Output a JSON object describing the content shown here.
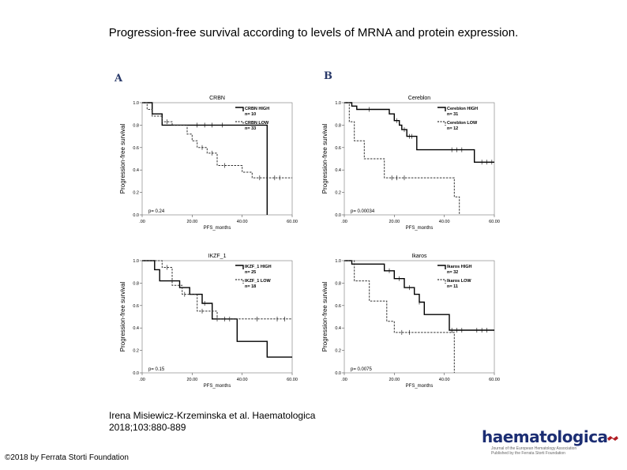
{
  "title": "Progression-free survival according to levels of MRNA and protein expression.",
  "panel_labels": [
    "A",
    "B"
  ],
  "credit": {
    "line1": "Irena Misiewicz-Krzeminska et al. Haematologica",
    "line2": "2018;103:880-889"
  },
  "copyright": "©2018 by Ferrata Storti Foundation",
  "logo": {
    "word": "haematologica",
    "sub1": "Journal of the European Hematology Association",
    "sub2": "Published by the Ferrata Storti Foundation"
  },
  "chart_data": [
    {
      "type": "line",
      "title": "CRBN",
      "xlabel": "PFS_months",
      "ylabel": "Progression-free survival",
      "xlim": [
        0,
        60
      ],
      "ylim": [
        0,
        1
      ],
      "xticks": [
        0,
        20,
        40,
        60
      ],
      "xticklabels": [
        ".00",
        "20.00",
        "40.00",
        "60.00"
      ],
      "yticks": [
        0,
        0.2,
        0.4,
        0.6,
        0.8,
        1.0
      ],
      "yticklabels": [
        "0.0",
        "0.2",
        "0.4",
        "0.6",
        "0.8",
        "1.0"
      ],
      "pvalue": "p= 0.24",
      "legend_position": "top-right",
      "series": [
        {
          "name": "CRBN HIGH",
          "n": "n= 10",
          "style": "solid",
          "x": [
            0,
            4,
            4,
            8,
            8,
            50,
            50
          ],
          "y": [
            1.0,
            1.0,
            0.9,
            0.9,
            0.8,
            0.8,
            0.0
          ],
          "censor_x": [
            22,
            25,
            28,
            32
          ]
        },
        {
          "name": "CRBN LOW",
          "n": "n= 33",
          "style": "dashed",
          "x": [
            0,
            2,
            2,
            4,
            4,
            8,
            8,
            12,
            12,
            18,
            18,
            20,
            20,
            22,
            22,
            26,
            26,
            30,
            30,
            40,
            40,
            44,
            44,
            60
          ],
          "y": [
            1.0,
            1.0,
            0.94,
            0.94,
            0.88,
            0.88,
            0.83,
            0.83,
            0.8,
            0.8,
            0.72,
            0.72,
            0.66,
            0.66,
            0.6,
            0.6,
            0.55,
            0.55,
            0.44,
            0.44,
            0.38,
            0.38,
            0.33,
            0.33
          ],
          "censor_x": [
            10,
            24,
            28,
            33,
            47,
            50,
            53,
            55
          ]
        }
      ]
    },
    {
      "type": "line",
      "title": "Cereblon",
      "xlabel": "PFS_months",
      "ylabel": "Progression-free survival",
      "xlim": [
        0,
        60
      ],
      "ylim": [
        0,
        1
      ],
      "xticks": [
        0,
        20,
        40,
        60
      ],
      "xticklabels": [
        ".00",
        "20.00",
        "40.00",
        "60.00"
      ],
      "yticks": [
        0,
        0.2,
        0.4,
        0.6,
        0.8,
        1.0
      ],
      "yticklabels": [
        "0.0",
        "0.2",
        "0.4",
        "0.6",
        "0.8",
        "1.0"
      ],
      "pvalue": "p= 0.00034",
      "legend_position": "top-right",
      "series": [
        {
          "name": "Cereblon HIGH",
          "n": "n= 31",
          "style": "solid",
          "x": [
            0,
            3,
            3,
            5,
            5,
            18,
            18,
            20,
            20,
            22,
            22,
            23,
            23,
            25,
            25,
            29,
            29,
            52,
            52,
            60
          ],
          "y": [
            1.0,
            1.0,
            0.97,
            0.97,
            0.94,
            0.94,
            0.9,
            0.9,
            0.84,
            0.84,
            0.8,
            0.8,
            0.76,
            0.76,
            0.7,
            0.7,
            0.58,
            0.58,
            0.47,
            0.47
          ],
          "censor_x": [
            10,
            21,
            24,
            26,
            27,
            43,
            45,
            47,
            55,
            57,
            59
          ]
        },
        {
          "name": "Cereblon LOW",
          "n": "n= 12",
          "style": "dashed",
          "x": [
            0,
            2,
            2,
            4,
            4,
            8,
            8,
            16,
            16,
            44,
            44,
            46,
            46
          ],
          "y": [
            1.0,
            1.0,
            0.83,
            0.83,
            0.66,
            0.66,
            0.5,
            0.5,
            0.33,
            0.33,
            0.16,
            0.16,
            0.0
          ],
          "censor_x": [
            19,
            21,
            24
          ]
        }
      ]
    },
    {
      "type": "line",
      "title": "IKZF_1",
      "xlabel": "PFS_months",
      "ylabel": "Progression-free survival",
      "xlim": [
        0,
        60
      ],
      "ylim": [
        0,
        1
      ],
      "xticks": [
        0,
        20,
        40,
        60
      ],
      "xticklabels": [
        ".00",
        "20.00",
        "40.00",
        "60.00"
      ],
      "yticks": [
        0,
        0.2,
        0.4,
        0.6,
        0.8,
        1.0
      ],
      "yticklabels": [
        "0.0",
        "0.2",
        "0.4",
        "0.6",
        "0.8",
        "1.0"
      ],
      "pvalue": "p= 0.15",
      "legend_position": "top-right",
      "series": [
        {
          "name": "IKZF_1 HIGH",
          "n": "n= 25",
          "style": "solid",
          "x": [
            0,
            5,
            5,
            7,
            7,
            15,
            15,
            19,
            19,
            24,
            24,
            28,
            28,
            38,
            38,
            50,
            50,
            60
          ],
          "y": [
            1.0,
            1.0,
            0.92,
            0.92,
            0.82,
            0.82,
            0.76,
            0.76,
            0.7,
            0.7,
            0.62,
            0.62,
            0.48,
            0.48,
            0.28,
            0.28,
            0.14,
            0.14
          ],
          "censor_x": [
            25,
            30,
            35
          ]
        },
        {
          "name": "IKZF_1 LOW",
          "n": "n= 18",
          "style": "dashed",
          "x": [
            0,
            8,
            8,
            12,
            12,
            16,
            16,
            22,
            22,
            30,
            30,
            44,
            44,
            60
          ],
          "y": [
            1.0,
            1.0,
            0.94,
            0.94,
            0.78,
            0.78,
            0.7,
            0.7,
            0.55,
            0.55,
            0.48,
            0.48,
            0.48,
            0.48
          ],
          "censor_x": [
            10,
            17,
            24,
            33,
            46,
            54,
            57
          ]
        }
      ]
    },
    {
      "type": "line",
      "title": "Ikaros",
      "xlabel": "PFS_months",
      "ylabel": "Progression-free survival",
      "xlim": [
        0,
        60
      ],
      "ylim": [
        0,
        1
      ],
      "xticks": [
        0,
        20,
        40,
        60
      ],
      "xticklabels": [
        ".00",
        "20.00",
        "40.00",
        "60.00"
      ],
      "yticks": [
        0,
        0.2,
        0.4,
        0.6,
        0.8,
        1.0
      ],
      "yticklabels": [
        "0.0",
        "0.2",
        "0.4",
        "0.6",
        "0.8",
        "1.0"
      ],
      "pvalue": "p= 0.0075",
      "legend_position": "top-right",
      "series": [
        {
          "name": "Ikaros HIGH",
          "n": "n= 32",
          "style": "solid",
          "x": [
            0,
            3,
            3,
            16,
            16,
            20,
            20,
            24,
            24,
            28,
            28,
            30,
            30,
            32,
            32,
            42,
            42,
            50,
            50,
            60
          ],
          "y": [
            1.0,
            1.0,
            0.97,
            0.97,
            0.91,
            0.91,
            0.84,
            0.84,
            0.76,
            0.76,
            0.7,
            0.7,
            0.63,
            0.63,
            0.52,
            0.52,
            0.38,
            0.38,
            0.38,
            0.38
          ],
          "censor_x": [
            18,
            22,
            26,
            30,
            43,
            45,
            47,
            53,
            55,
            57
          ]
        },
        {
          "name": "Ikaros LOW",
          "n": "n= 11",
          "style": "dashed",
          "x": [
            0,
            4,
            4,
            10,
            10,
            17,
            17,
            20,
            20,
            44,
            44
          ],
          "y": [
            1.0,
            1.0,
            0.82,
            0.82,
            0.64,
            0.64,
            0.46,
            0.46,
            0.36,
            0.36,
            0.0
          ],
          "censor_x": [
            23,
            26
          ]
        }
      ]
    }
  ]
}
